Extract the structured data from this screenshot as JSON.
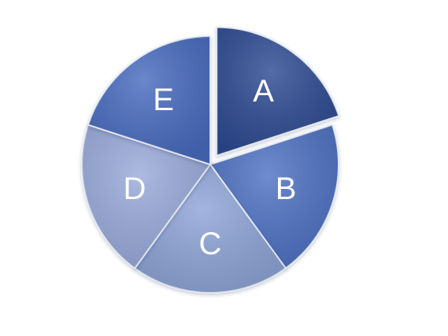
{
  "chart_data": {
    "type": "pie",
    "categories": [
      "A",
      "B",
      "C",
      "D",
      "E"
    ],
    "values": [
      20,
      20,
      20,
      20,
      20
    ],
    "exploded": [
      "A"
    ],
    "colors": [
      "#2f4c93",
      "#4f72c4",
      "#8fa5d8",
      "#9aabdb",
      "#4a6cc0"
    ],
    "title": "",
    "legend": "none"
  }
}
